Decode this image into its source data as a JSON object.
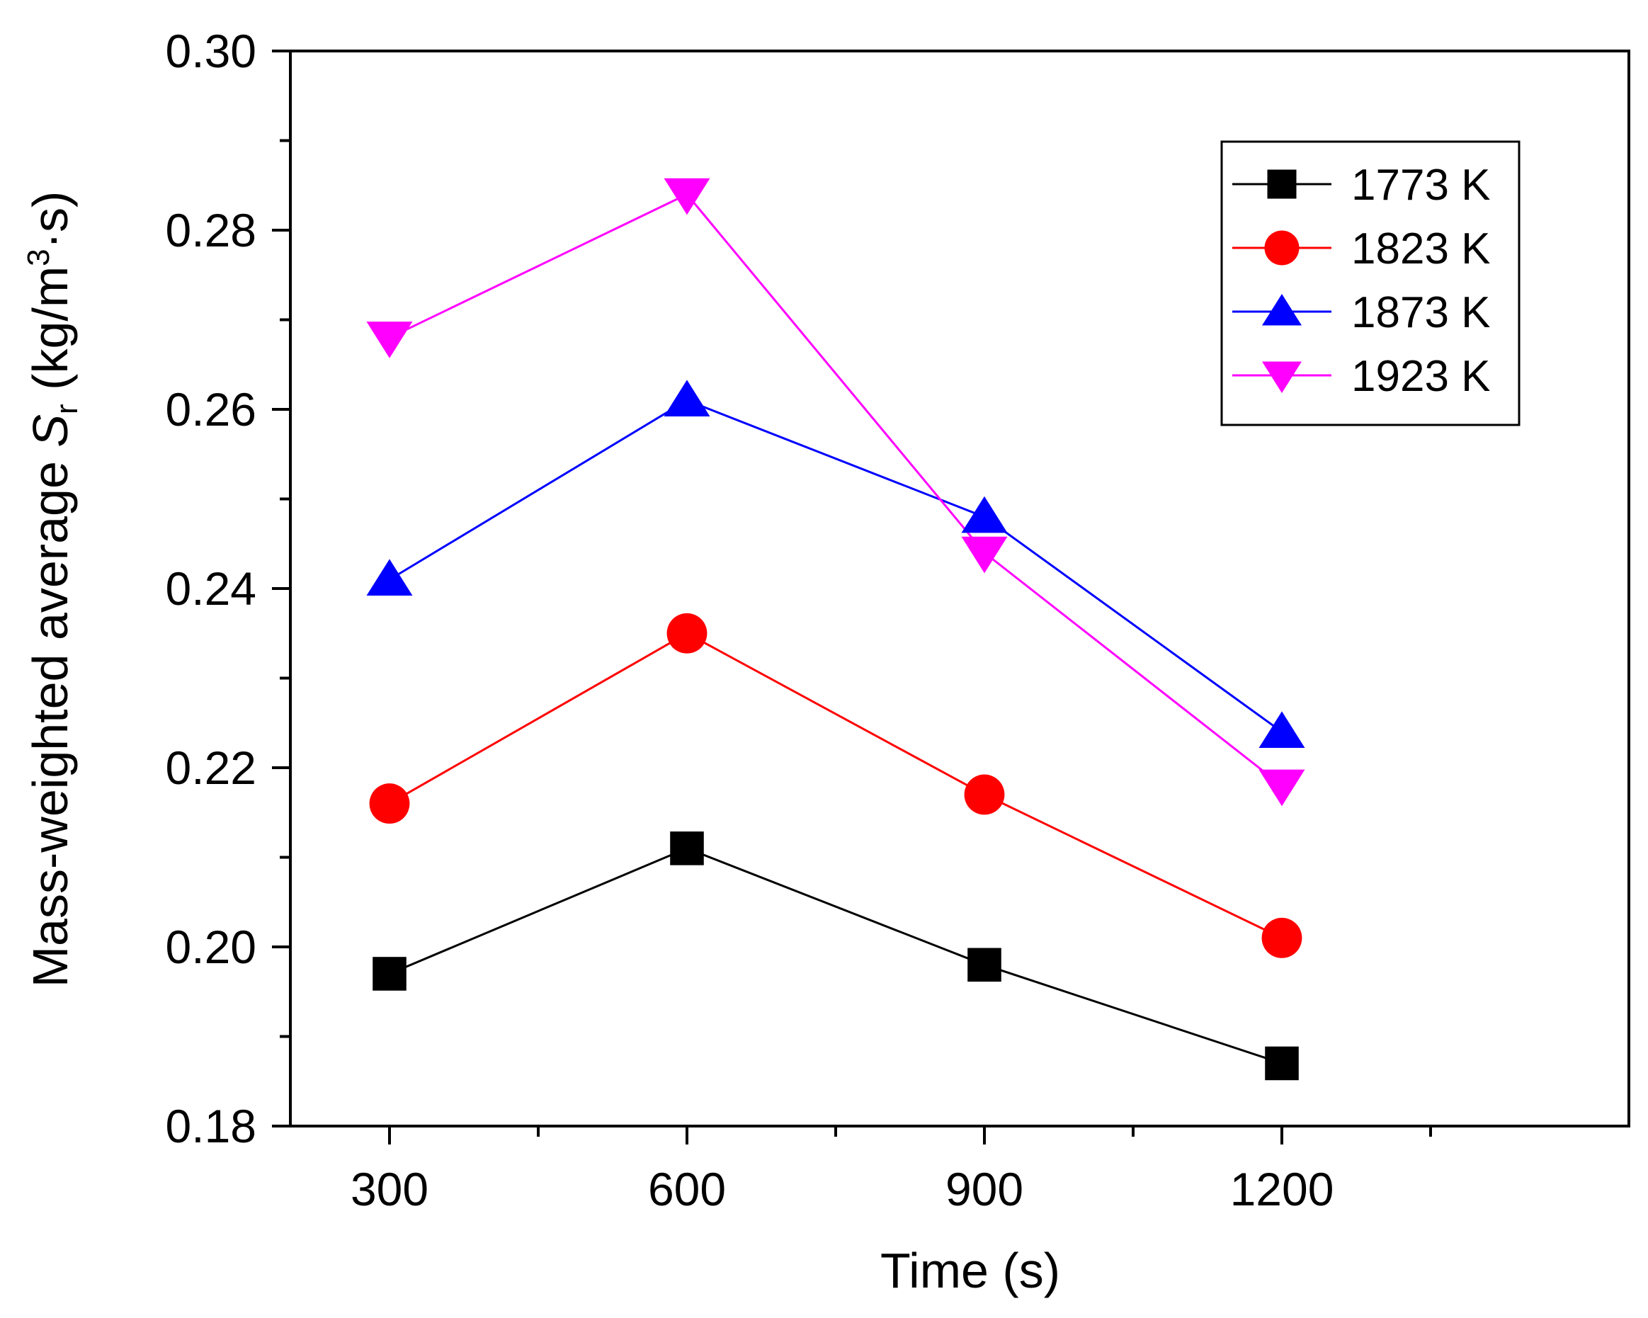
{
  "chart_data": {
    "type": "line",
    "title": "",
    "xlabel": "Time (s)",
    "ylabel": {
      "prefix": "Mass-weighted average ",
      "symbol": "S",
      "subscript": "r",
      "unit_open": " (kg/m",
      "superscript": "3",
      "unit_close": "·s)"
    },
    "x": [
      300,
      600,
      900,
      1200
    ],
    "x_tick_labels": [
      "300",
      "600",
      "900",
      "1200"
    ],
    "xlim": [
      200,
      1550
    ],
    "ylim": [
      0.18,
      0.3
    ],
    "y_ticks": [
      0.18,
      0.2,
      0.22,
      0.24,
      0.26,
      0.28,
      0.3
    ],
    "y_tick_labels": [
      "0.18",
      "0.20",
      "0.22",
      "0.24",
      "0.26",
      "0.28",
      "0.30"
    ],
    "grid": false,
    "legend_position": "top-right",
    "series": [
      {
        "name": "1773 K",
        "color": "#000000",
        "marker": "square",
        "values": [
          0.197,
          0.211,
          0.198,
          0.187
        ]
      },
      {
        "name": "1823 K",
        "color": "#ff0000",
        "marker": "circle",
        "values": [
          0.216,
          0.235,
          0.217,
          0.201
        ]
      },
      {
        "name": "1873 K",
        "color": "#0000ff",
        "marker": "triangle-up",
        "values": [
          0.241,
          0.261,
          0.248,
          0.224
        ]
      },
      {
        "name": "1923 K",
        "color": "#ff00ff",
        "marker": "triangle-down",
        "values": [
          0.268,
          0.284,
          0.244,
          0.218
        ]
      }
    ]
  }
}
